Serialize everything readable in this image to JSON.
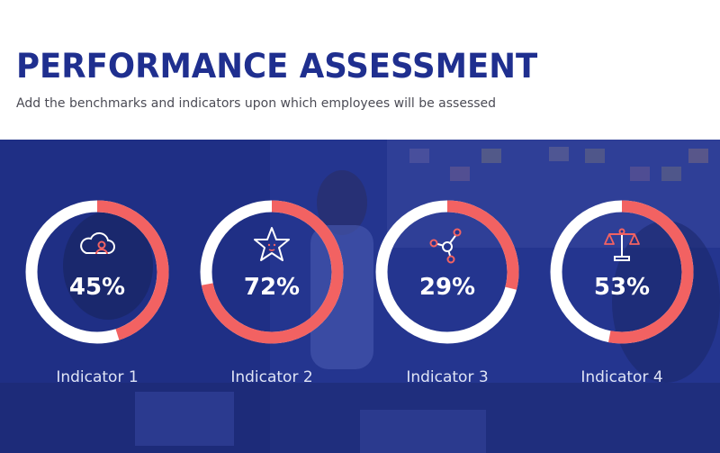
{
  "header": {
    "title": "PERFORMANCE ASSESSMENT",
    "subtitle": "Add the benchmarks and indicators upon which employees will be assessed"
  },
  "colors": {
    "brand": "#1f2f8f",
    "overlay": "#24358f",
    "ring_base": "#ffffff",
    "ring_progress": "#f26262"
  },
  "indicators": [
    {
      "label": "Indicator 1",
      "percent_text": "45%",
      "value": 45,
      "icon": "cloud-user-icon"
    },
    {
      "label": "Indicator 2",
      "percent_text": "72%",
      "value": 72,
      "icon": "star-icon"
    },
    {
      "label": "Indicator 3",
      "percent_text": "29%",
      "value": 29,
      "icon": "network-nodes-icon"
    },
    {
      "label": "Indicator 4",
      "percent_text": "53%",
      "value": 53,
      "icon": "balance-scale-icon"
    }
  ]
}
